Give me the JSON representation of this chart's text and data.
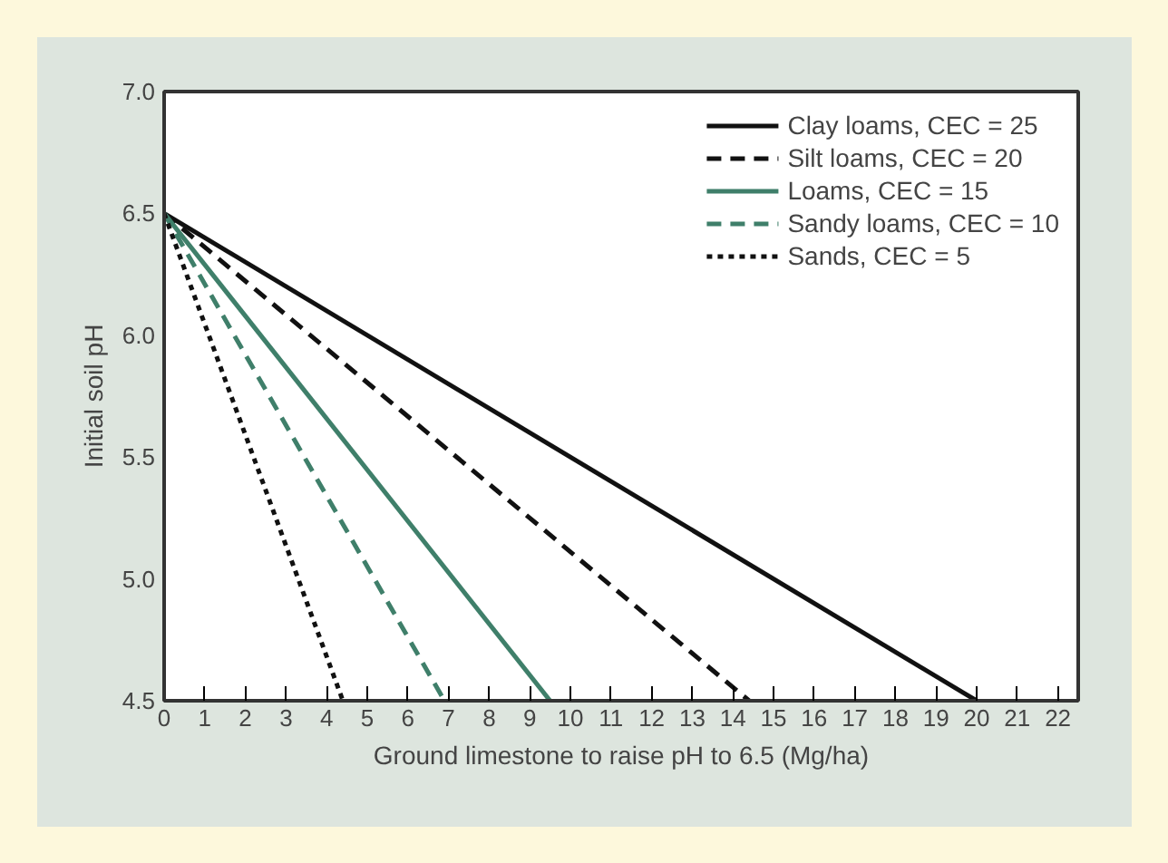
{
  "chart_data": {
    "type": "line",
    "xlabel": "Ground limestone to raise pH to 6.5 (Mg/ha)",
    "ylabel": "Initial soil pH",
    "xlim": [
      0,
      22.5
    ],
    "ylim": [
      4.5,
      7.0
    ],
    "xticks": [
      0,
      1,
      2,
      3,
      4,
      5,
      6,
      7,
      8,
      9,
      10,
      11,
      12,
      13,
      14,
      15,
      16,
      17,
      18,
      19,
      20,
      21,
      22
    ],
    "yticks": [
      {
        "value": 4.5,
        "label": "4.5"
      },
      {
        "value": 5.0,
        "label": "5.0"
      },
      {
        "value": 5.5,
        "label": "5.5"
      },
      {
        "value": 6.0,
        "label": "6.0"
      },
      {
        "value": 6.5,
        "label": "6.5"
      },
      {
        "value": 7.0,
        "label": "7.0"
      }
    ],
    "grid": false,
    "legend": "top right",
    "marker": "none",
    "series": [
      {
        "name": "Clay loams, CEC = 25",
        "color": "#111111",
        "line_style": "solid",
        "x": [
          0,
          20
        ],
        "values": [
          6.5,
          4.5
        ]
      },
      {
        "name": "Silt loams, CEC = 20",
        "color": "#111111",
        "line_style": "dashed",
        "x": [
          0,
          14.4
        ],
        "values": [
          6.5,
          4.5
        ]
      },
      {
        "name": "Loams, CEC = 15",
        "color": "#3f7f6a",
        "line_style": "solid",
        "x": [
          0,
          9.5
        ],
        "values": [
          6.5,
          4.5
        ]
      },
      {
        "name": "Sandy loams, CEC = 10",
        "color": "#3f7f6a",
        "line_style": "dashed",
        "x": [
          0,
          6.9
        ],
        "values": [
          6.5,
          4.5
        ]
      },
      {
        "name": "Sands, CEC = 5",
        "color": "#111111",
        "line_style": "dotted",
        "x": [
          0,
          4.4
        ],
        "values": [
          6.5,
          4.5
        ]
      }
    ]
  }
}
